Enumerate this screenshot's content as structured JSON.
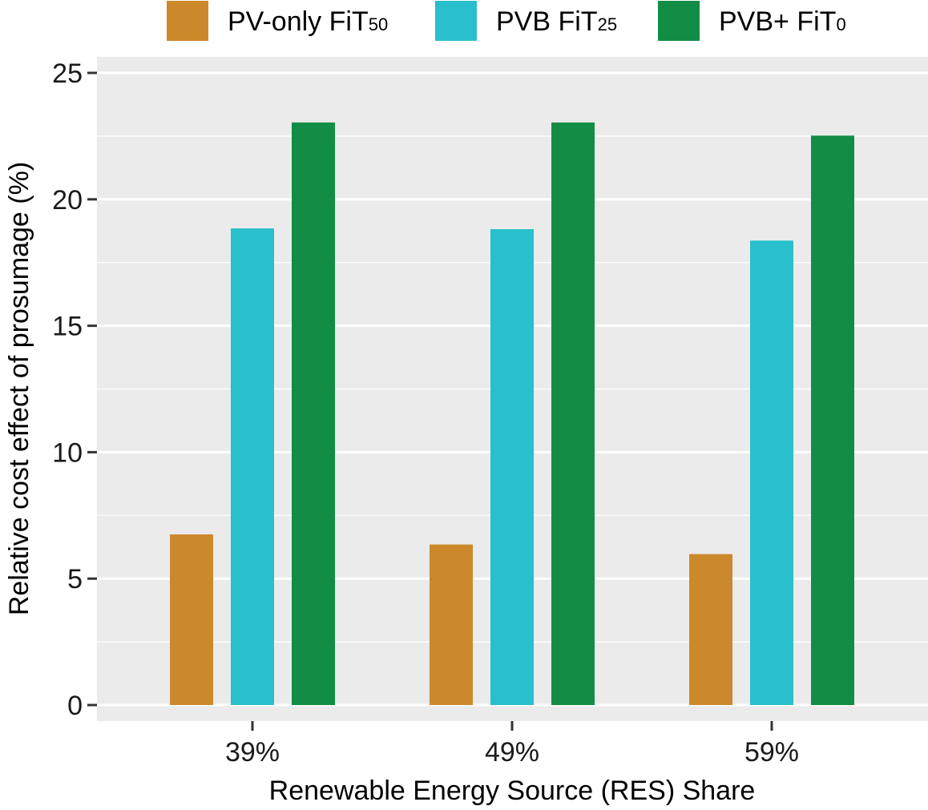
{
  "chart_data": {
    "type": "bar",
    "title": "",
    "xlabel": "Renewable Energy Source (RES) Share",
    "ylabel": "Relative cost effect of prosumage (%)",
    "ylim": [
      -0.6,
      25.9
    ],
    "yticks": [
      "0",
      "5",
      "10",
      "15",
      "20",
      "25"
    ],
    "ytick_values": [
      0,
      5,
      10,
      15,
      20,
      25
    ],
    "categories": [
      "39%",
      "49%",
      "59%"
    ],
    "legend_position": "top",
    "series": [
      {
        "name": "PV-only FiT50",
        "label_main": "PV-only FiT",
        "label_sub": "50",
        "color": "#CC892C",
        "values": [
          6.75,
          6.35,
          5.97
        ]
      },
      {
        "name": "PVB FiT25",
        "label_main": "PVB FiT",
        "label_sub": "25",
        "color": "#29BFCC",
        "values": [
          18.85,
          18.82,
          18.37
        ]
      },
      {
        "name": "PVB+ FiT0",
        "label_main": "PVB+ FiT",
        "label_sub": "0",
        "color": "#128D45",
        "values": [
          23.04,
          23.04,
          22.52
        ]
      }
    ]
  }
}
